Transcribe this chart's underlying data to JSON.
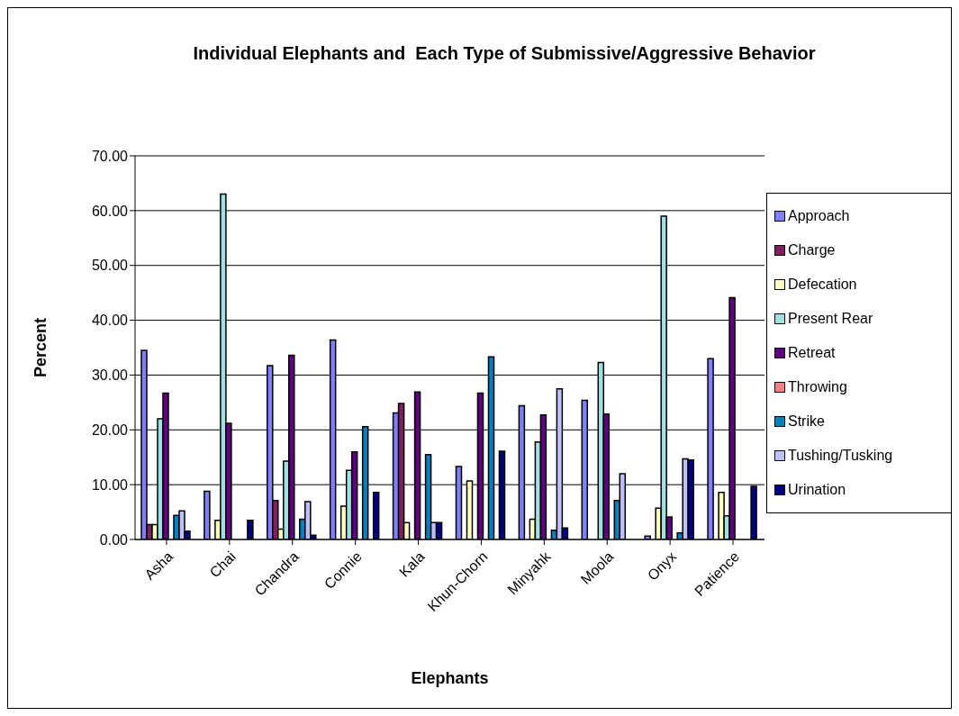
{
  "chart_data": {
    "type": "bar",
    "title": "Individual Elephants and  Each Type of Submissive/Aggressive Behavior",
    "xlabel": "Elephants",
    "ylabel": "Percent",
    "categories": [
      "Asha",
      "Chai",
      "Chandra",
      "Connie",
      "Kala",
      "Khun-Chorn",
      "Minyahk",
      "Moola",
      "Onyx",
      "Patience"
    ],
    "series": [
      {
        "name": "Approach",
        "color": "#8080ff",
        "values": [
          34.5,
          8.8,
          31.7,
          36.4,
          23.1,
          13.3,
          24.4,
          25.4,
          0.6,
          33.0
        ]
      },
      {
        "name": "Charge",
        "color": "#802060",
        "values": [
          2.7,
          0,
          7.1,
          0,
          24.8,
          0,
          0,
          0,
          0,
          0
        ]
      },
      {
        "name": "Defecation",
        "color": "#ffffc0",
        "values": [
          2.7,
          3.5,
          1.9,
          6.1,
          3.1,
          10.7,
          3.7,
          0,
          5.7,
          8.6
        ]
      },
      {
        "name": "Present Rear",
        "color": "#a0e0e0",
        "values": [
          22.0,
          63.0,
          14.3,
          12.6,
          0,
          0,
          17.8,
          32.3,
          59.0,
          4.3
        ]
      },
      {
        "name": "Retreat",
        "color": "#600080",
        "values": [
          26.7,
          21.2,
          33.6,
          16.0,
          26.9,
          26.7,
          22.7,
          22.9,
          4.1,
          44.1
        ]
      },
      {
        "name": "Throwing",
        "color": "#ff8080",
        "values": [
          0,
          0,
          0,
          0,
          0,
          0,
          0,
          0,
          0,
          0
        ]
      },
      {
        "name": "Strike",
        "color": "#0080c0",
        "values": [
          4.4,
          0,
          3.7,
          20.6,
          15.5,
          33.3,
          1.7,
          7.1,
          1.2,
          0
        ]
      },
      {
        "name": "Tushing/Tusking",
        "color": "#c0c0ff",
        "values": [
          5.2,
          0,
          6.9,
          0,
          3.1,
          0,
          27.5,
          12.0,
          14.7,
          0
        ]
      },
      {
        "name": "Urination",
        "color": "#000080",
        "values": [
          1.5,
          3.5,
          0.8,
          8.6,
          3.1,
          16.1,
          2.1,
          0,
          14.5,
          9.7
        ]
      }
    ],
    "ylim": [
      0,
      70
    ],
    "yticks": [
      {
        "value": 0,
        "label": "0.00"
      },
      {
        "value": 10,
        "label": "10.00"
      },
      {
        "value": 20,
        "label": "20.00"
      },
      {
        "value": 30,
        "label": "30.00"
      },
      {
        "value": 40,
        "label": "40.00"
      },
      {
        "value": 50,
        "label": "50.00"
      },
      {
        "value": 60,
        "label": "60.00"
      },
      {
        "value": 70,
        "label": "70.00"
      }
    ],
    "grid": "y",
    "legend": "right"
  }
}
